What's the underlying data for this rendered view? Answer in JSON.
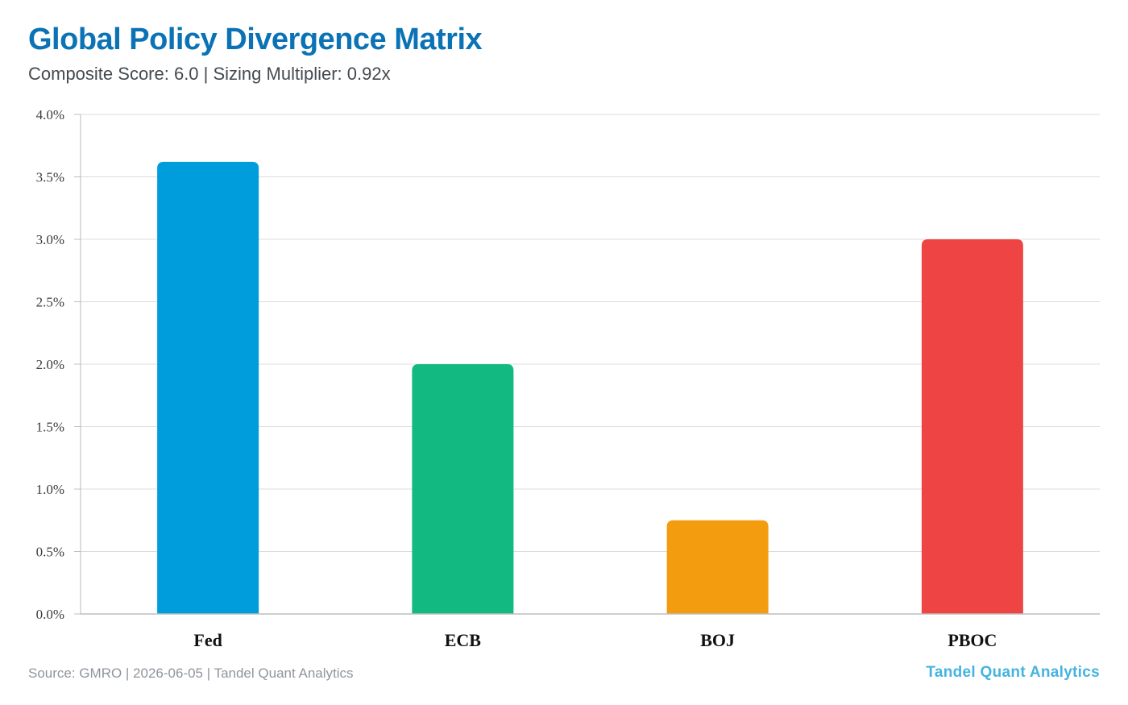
{
  "header": {
    "title": "Global Policy Divergence Matrix",
    "subtitle": "Composite Score: 6.0 | Sizing Multiplier: 0.92x"
  },
  "footer": {
    "source": "Source: GMRO | 2026-06-05 | Tandel Quant Analytics",
    "brand": "Tandel Quant Analytics"
  },
  "chart_data": {
    "type": "bar",
    "title": "",
    "xlabel": "",
    "ylabel": "",
    "categories": [
      "Fed",
      "ECB",
      "BOJ",
      "PBOC"
    ],
    "values": [
      3.62,
      2.0,
      0.75,
      3.0
    ],
    "colors": [
      "#009ddc",
      "#12b981",
      "#f39c0f",
      "#ef4444"
    ],
    "ylim": [
      0,
      4.0
    ],
    "yticks": [
      0.0,
      0.5,
      1.0,
      1.5,
      2.0,
      2.5,
      3.0,
      3.5,
      4.0
    ],
    "ytick_labels": [
      "0.0%",
      "0.5%",
      "1.0%",
      "1.5%",
      "2.0%",
      "2.5%",
      "3.0%",
      "3.5%",
      "4.0%"
    ],
    "grid": true,
    "legend": "none"
  }
}
